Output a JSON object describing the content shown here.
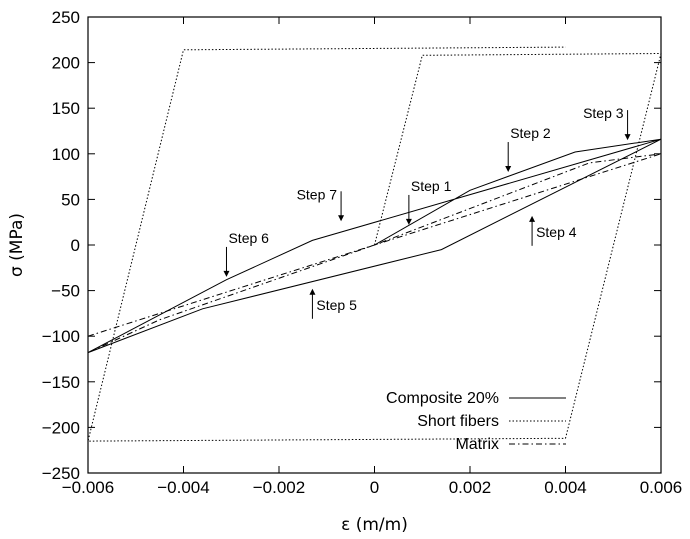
{
  "chart_data": {
    "type": "line",
    "title": "",
    "xlabel": "ε (m/m)",
    "ylabel": "σ (MPa)",
    "xlim": [
      -0.006,
      0.006
    ],
    "ylim": [
      -250,
      250
    ],
    "grid": false,
    "legend_position": "bottom-right",
    "x_ticks": [
      -0.006,
      -0.004,
      -0.002,
      0,
      0.002,
      0.004,
      0.006
    ],
    "x_tick_labels": [
      "−0.006",
      "−0.004",
      "−0.002",
      "0",
      "0.002",
      "0.004",
      "0.006"
    ],
    "y_ticks": [
      -250,
      -200,
      -150,
      -100,
      -50,
      0,
      50,
      100,
      150,
      200,
      250
    ],
    "y_tick_labels": [
      "−250",
      "−200",
      "−150",
      "−100",
      "−50",
      "0",
      "50",
      "100",
      "150",
      "200",
      "250"
    ],
    "series": [
      {
        "name": "Composite 20%",
        "style": "solid",
        "x": [
          0,
          0.002,
          0.0042,
          0.006,
          0.0014,
          -0.0036,
          -0.006,
          -0.0031,
          -0.0013,
          0.006
        ],
        "y": [
          0,
          60,
          102,
          116,
          -5,
          -70,
          -118,
          -38,
          5,
          116
        ]
      },
      {
        "name": "Short fibers",
        "style": "dotted",
        "x": [
          0,
          0.001,
          0.006,
          0.004,
          -0.006,
          -0.004,
          0.004
        ],
        "y": [
          0,
          208,
          210,
          -212,
          -215,
          214,
          217
        ]
      },
      {
        "name": "Matrix",
        "style": "dashdot",
        "x": [
          -0.006,
          0.006,
          0.0045,
          0,
          -0.0045,
          -0.006
        ],
        "y": [
          -100,
          100,
          90,
          0,
          -82,
          -118
        ]
      }
    ],
    "annotations": [
      {
        "label": "Step 1",
        "x": 0.00072,
        "y": 22,
        "direction": "down"
      },
      {
        "label": "Step 2",
        "x": 0.0028,
        "y": 80,
        "direction": "down"
      },
      {
        "label": "Step 3",
        "x": 0.0053,
        "y": 115,
        "direction": "down"
      },
      {
        "label": "Step 4",
        "x": 0.0033,
        "y": 32,
        "direction": "up"
      },
      {
        "label": "Step 5",
        "x": -0.0013,
        "y": -48,
        "direction": "up"
      },
      {
        "label": "Step 6",
        "x": -0.0031,
        "y": -35,
        "direction": "down"
      },
      {
        "label": "Step 7",
        "x": -0.0007,
        "y": 26,
        "direction": "down"
      }
    ]
  }
}
